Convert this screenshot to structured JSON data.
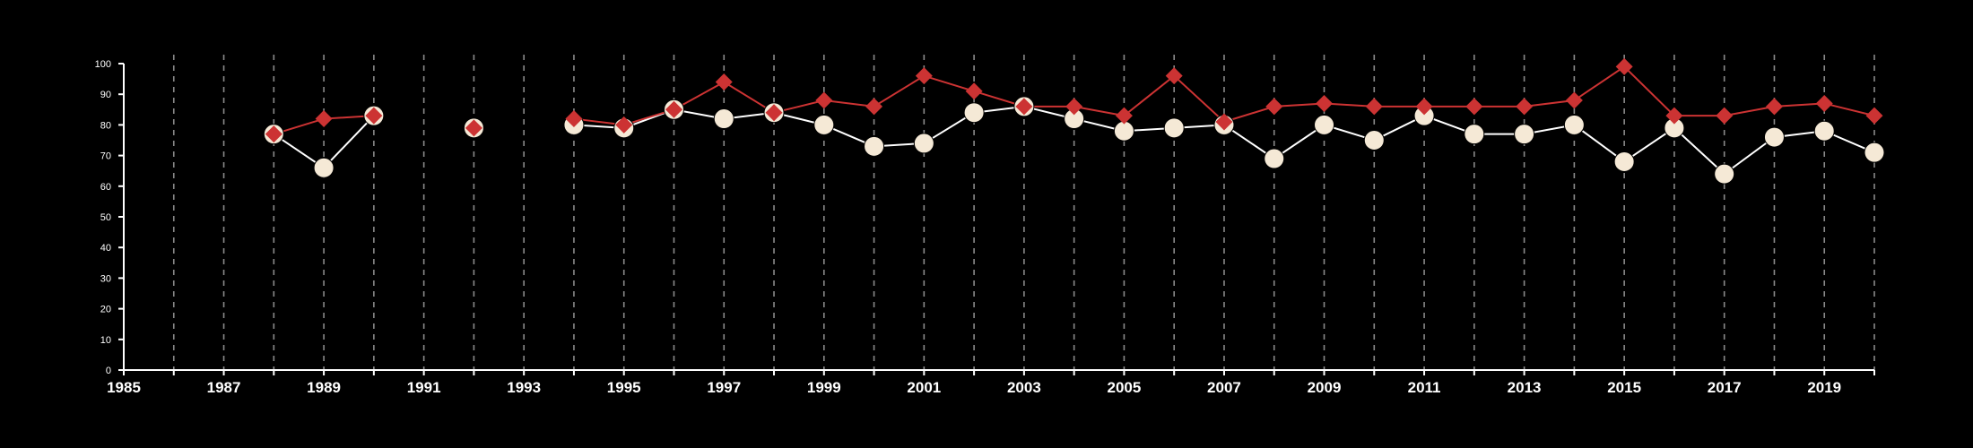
{
  "chart_data": {
    "type": "line",
    "title": "",
    "xlabel": "",
    "ylabel": "",
    "xlim": [
      1985,
      2020
    ],
    "ylim": [
      0,
      100
    ],
    "grid": "vertical dashed lines at each year",
    "x_ticks": [
      1985,
      1987,
      1989,
      1991,
      1993,
      1995,
      1997,
      1999,
      2001,
      2003,
      2005,
      2007,
      2009,
      2011,
      2013,
      2015,
      2017,
      2019
    ],
    "y_ticks": [
      0,
      10,
      20,
      30,
      40,
      50,
      60,
      70,
      80,
      90,
      100
    ],
    "x": [
      1985,
      1986,
      1987,
      1988,
      1989,
      1990,
      1991,
      1992,
      1993,
      1994,
      1995,
      1996,
      1997,
      1998,
      1999,
      2000,
      2001,
      2002,
      2003,
      2004,
      2005,
      2006,
      2007,
      2008,
      2009,
      2010,
      2011,
      2012,
      2013,
      2014,
      2015,
      2016,
      2017,
      2018,
      2019,
      2020
    ],
    "series": [
      {
        "marker": "circle",
        "color": "#f5e9d6",
        "values": [
          null,
          null,
          null,
          77,
          66,
          83,
          null,
          79,
          null,
          80,
          79,
          85,
          82,
          84,
          80,
          73,
          74,
          84,
          86,
          82,
          78,
          79,
          80,
          69,
          80,
          75,
          83,
          77,
          77,
          80,
          68,
          79,
          64,
          76,
          78,
          71
        ]
      },
      {
        "marker": "diamond",
        "color": "#cc3333",
        "values": [
          null,
          null,
          null,
          77,
          82,
          83,
          null,
          79,
          null,
          82,
          80,
          85,
          94,
          84,
          88,
          86,
          96,
          91,
          86,
          86,
          83,
          96,
          81,
          86,
          87,
          86,
          86,
          86,
          86,
          88,
          99,
          83,
          83,
          86,
          87,
          83
        ]
      }
    ]
  }
}
